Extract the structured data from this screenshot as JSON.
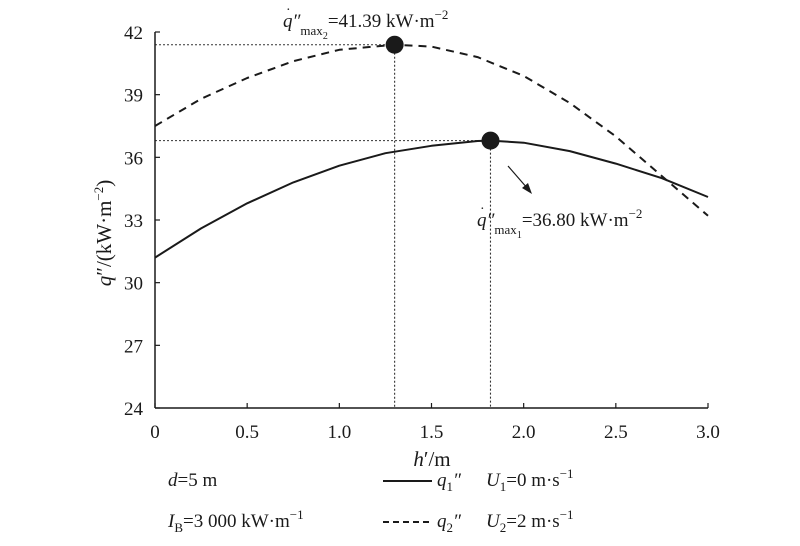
{
  "chart_data": {
    "type": "line",
    "xlabel": "h′/m",
    "ylabel": "q″/(kW·m⁻²)",
    "xlim": [
      0,
      3.0
    ],
    "ylim": [
      24,
      42
    ],
    "x_ticks": [
      "0",
      "0.5",
      "1.0",
      "1.5",
      "2.0",
      "2.5",
      "3.0"
    ],
    "y_ticks": [
      "24",
      "27",
      "30",
      "33",
      "36",
      "39",
      "42"
    ],
    "grid": false,
    "series": [
      {
        "name": "q1″",
        "style": "solid",
        "x": [
          0,
          0.25,
          0.5,
          0.75,
          1.0,
          1.25,
          1.5,
          1.75,
          1.82,
          2.0,
          2.25,
          2.5,
          2.75,
          3.0
        ],
        "y": [
          31.2,
          32.6,
          33.8,
          34.8,
          35.6,
          36.2,
          36.55,
          36.78,
          36.8,
          36.7,
          36.3,
          35.7,
          35.0,
          34.1
        ]
      },
      {
        "name": "q2″",
        "style": "dashed",
        "x": [
          0,
          0.25,
          0.5,
          0.75,
          1.0,
          1.3,
          1.5,
          1.75,
          2.0,
          2.25,
          2.5,
          2.75,
          3.0
        ],
        "y": [
          37.5,
          38.8,
          39.8,
          40.6,
          41.15,
          41.39,
          41.3,
          40.8,
          39.9,
          38.6,
          37.0,
          35.1,
          33.2
        ]
      }
    ],
    "maxima": [
      {
        "series": "q1″",
        "x": 1.82,
        "y": 36.8,
        "label": "q̇″max1=36.80 kW·m⁻²"
      },
      {
        "series": "q2″",
        "x": 1.3,
        "y": 41.39,
        "label": "q̇″max2=41.39 kW·m⁻²"
      }
    ],
    "legend": {
      "placement": "bottom",
      "params": [
        "d=5 m",
        "IB=3 000 kW·m⁻¹"
      ],
      "entries": [
        {
          "series": "q1″",
          "condition": "U1=0 m·s⁻¹"
        },
        {
          "series": "q2″",
          "condition": "U2=2 m·s⁻¹"
        }
      ]
    },
    "colors": {
      "line": "#1a1a1a",
      "guide": "#333333"
    }
  }
}
